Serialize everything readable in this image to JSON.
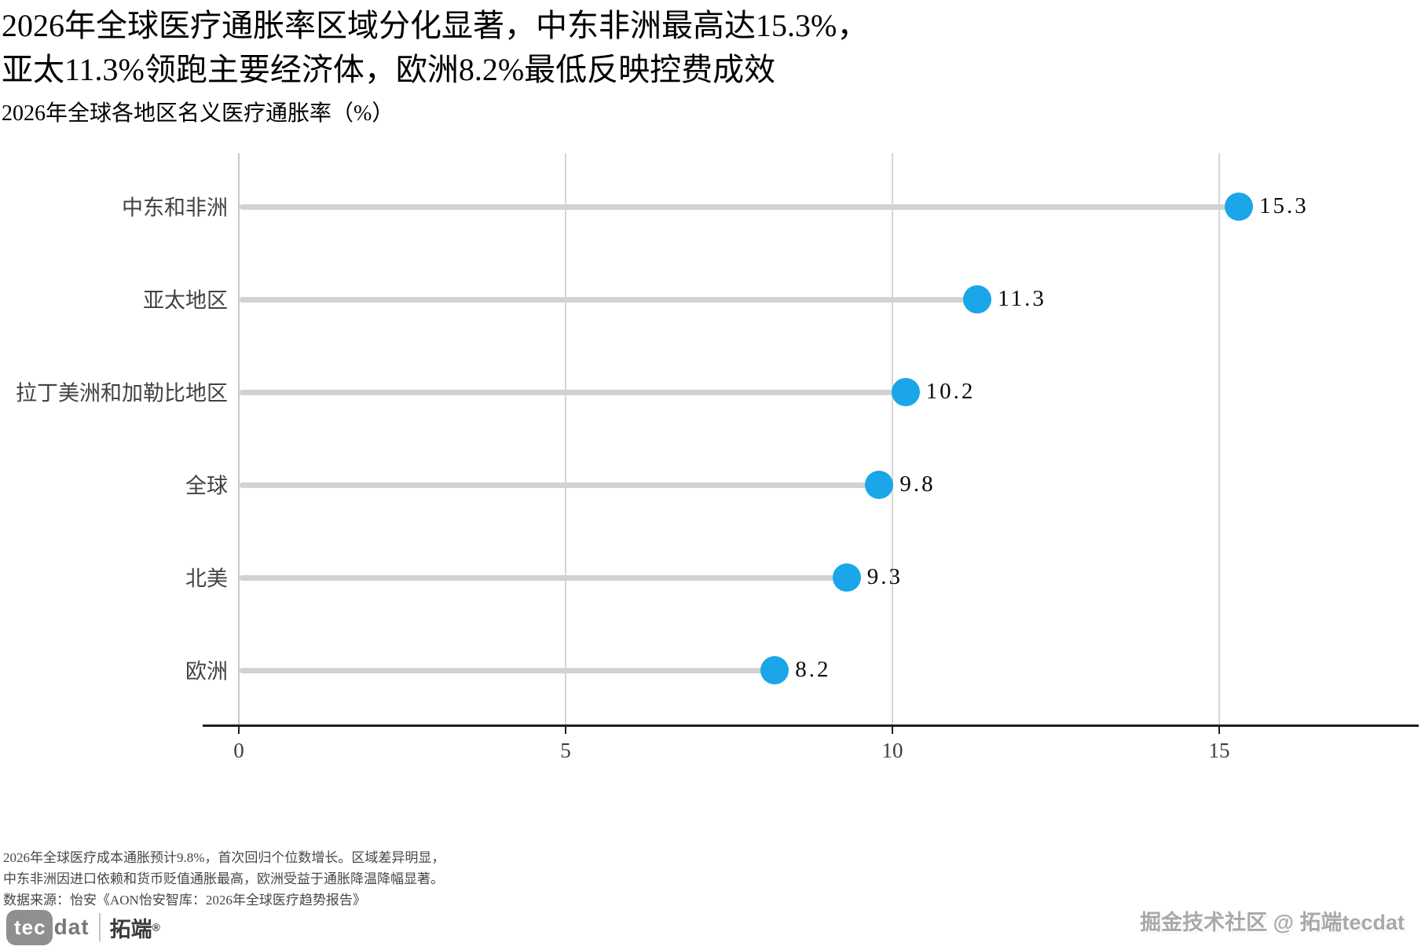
{
  "header": {
    "title_line1": "2026年全球医疗通胀率区域分化显著，中东非洲最高达15.3%，",
    "title_line2": "亚太11.3%领跑主要经济体，欧洲8.2%最低反映控费成效",
    "subtitle": "2026年全球各地区名义医疗通胀率（%）"
  },
  "chart_data": {
    "type": "bar",
    "variant": "horizontal-lollipop",
    "title": "2026年全球各地区名义医疗通胀率（%）",
    "categories": [
      "中东和非洲",
      "亚太地区",
      "拉丁美洲和加勒比地区",
      "全球",
      "北美",
      "欧洲"
    ],
    "values": [
      15.3,
      11.3,
      10.2,
      9.8,
      9.3,
      8.2
    ],
    "value_labels": [
      "15.3",
      "11.3",
      "10.2",
      "9.8",
      "9.3",
      "8.2"
    ],
    "xlabel": "",
    "ylabel": "",
    "xlim": [
      0,
      18
    ],
    "xticks": [
      0,
      5,
      10,
      15
    ],
    "xtick_labels": [
      "0",
      "5",
      "10",
      "15"
    ],
    "grid": "vertical-gridlines-only",
    "legend": "none",
    "dot_color": "#1aa6e8",
    "stem_color": "#d2d2d2",
    "gridline_color": "#d6d6d6",
    "axis_line_color": "#1f1f1f"
  },
  "footer": {
    "note_line1": "2026年全球医疗成本通胀预计9.8%，首次回归个位数增长。区域差异明显，",
    "note_line2": "中东非洲因进口依赖和货币贬值通胀最高，欧洲受益于通胀降温降幅显著。",
    "source": "数据来源：怡安《AON怡安智库：2026年全球医疗趋势报告》"
  },
  "branding": {
    "logo_tec": "tec",
    "logo_dat": "dat",
    "logo_brand": "拓端",
    "logo_reg": "®",
    "watermark": "掘金技术社区 @ 拓端tecdat"
  }
}
